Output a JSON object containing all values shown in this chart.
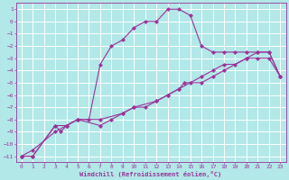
{
  "xlabel": "Windchill (Refroidissement éolien,°C)",
  "bg_color": "#b2e8e8",
  "grid_color": "#ffffff",
  "line_color": "#993399",
  "xlim": [
    -0.5,
    23.5
  ],
  "ylim": [
    -11.5,
    1.5
  ],
  "xticks": [
    0,
    1,
    2,
    3,
    4,
    5,
    6,
    7,
    8,
    9,
    10,
    11,
    12,
    13,
    14,
    15,
    16,
    17,
    18,
    19,
    20,
    21,
    22,
    23
  ],
  "yticks": [
    1,
    0,
    -1,
    -2,
    -3,
    -4,
    -5,
    -6,
    -7,
    -8,
    -9,
    -10,
    -11
  ],
  "curve1_x": [
    0,
    1,
    3,
    4,
    5,
    7,
    9,
    10,
    11,
    12,
    13,
    14,
    15,
    16,
    17,
    18,
    19,
    20,
    21,
    22,
    23
  ],
  "curve1_y": [
    -11,
    -10.5,
    -9,
    -8.5,
    -8,
    -8,
    -7.5,
    -7,
    -7,
    -6.5,
    -6,
    -5.5,
    -5,
    -4.5,
    -4,
    -3.5,
    -3.5,
    -3,
    -2.5,
    -2.5,
    -4.5
  ],
  "curve2_x": [
    0,
    1,
    3,
    4,
    5,
    6,
    7,
    8,
    9,
    10,
    11,
    12,
    13,
    14,
    15,
    16,
    17,
    18,
    19,
    20,
    21,
    22,
    23
  ],
  "curve2_y": [
    -11,
    -11,
    -8.5,
    -8.5,
    -8,
    -8,
    -3.5,
    -2,
    -1.5,
    -0.5,
    0,
    0,
    1,
    1,
    0.5,
    -2,
    -2.5,
    -2.5,
    -2.5,
    -2.5,
    -2.5,
    -2.5,
    -4.5
  ],
  "curve3_x": [
    0,
    1,
    3,
    3.5,
    4,
    5,
    7,
    8,
    9,
    10,
    12,
    13,
    14,
    14.5,
    16,
    17,
    18,
    20,
    21,
    22,
    23
  ],
  "curve3_y": [
    -11,
    -11,
    -8.5,
    -9,
    -8.5,
    -8,
    -8.5,
    -8,
    -7.5,
    -7,
    -6.5,
    -6,
    -5.5,
    -5,
    -5,
    -4.5,
    -4,
    -3,
    -3,
    -3,
    -4.5
  ]
}
